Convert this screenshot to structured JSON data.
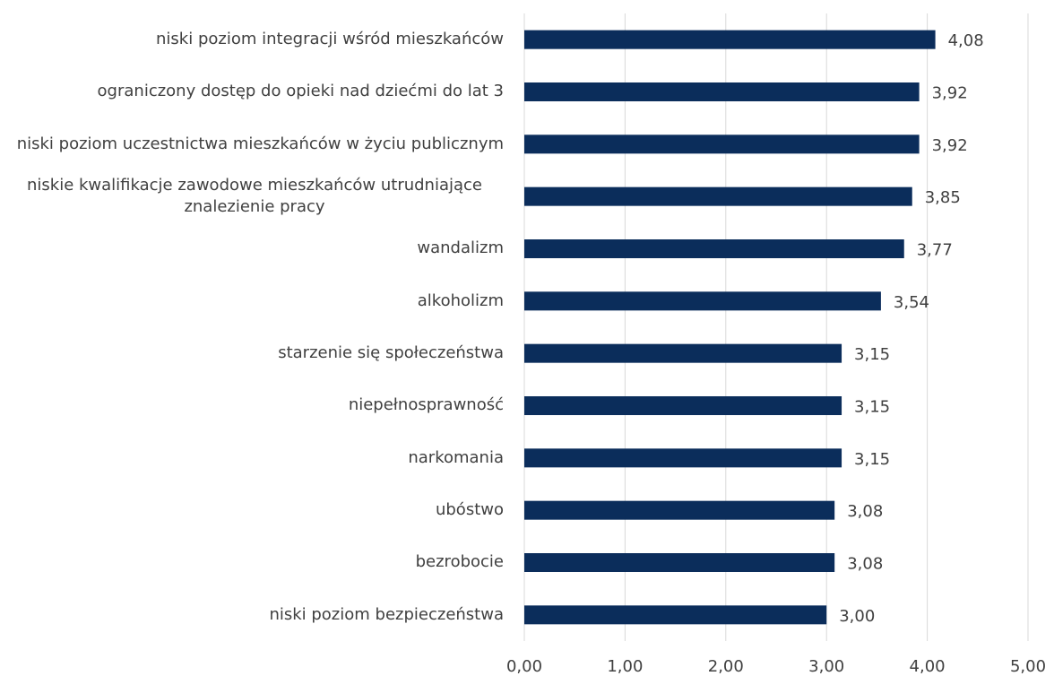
{
  "chart_data": {
    "type": "bar",
    "orientation": "horizontal",
    "categories": [
      "niski poziom integracji wśród mieszkańców",
      "ograniczony dostęp do opieki nad dziećmi do lat 3",
      "niski poziom uczestnictwa mieszkańców w życiu publicznym",
      "niskie kwalifikacje zawodowe mieszkańców utrudniające znalezienie pracy",
      "wandalizm",
      "alkoholizm",
      "starzenie się społeczeństwa",
      "niepełnosprawność",
      "narkomania",
      "ubóstwo",
      "bezrobocie",
      "niski poziom bezpieczeństwa"
    ],
    "values": [
      4.08,
      3.92,
      3.92,
      3.85,
      3.77,
      3.54,
      3.15,
      3.15,
      3.15,
      3.08,
      3.08,
      3.0
    ],
    "value_labels": [
      "4,08",
      "3,92",
      "3,92",
      "3,85",
      "3,77",
      "3,54",
      "3,15",
      "3,15",
      "3,15",
      "3,08",
      "3,08",
      "3,00"
    ],
    "color": "#0b2d5b",
    "xlim": [
      0,
      5
    ],
    "xticks": [
      {
        "value": 0,
        "label": "0,00"
      },
      {
        "value": 1,
        "label": "1,00"
      },
      {
        "value": 2,
        "label": "2,00"
      },
      {
        "value": 3,
        "label": "3,00"
      },
      {
        "value": 4,
        "label": "4,00"
      },
      {
        "value": 5,
        "label": "5,00"
      }
    ],
    "grid": true
  }
}
